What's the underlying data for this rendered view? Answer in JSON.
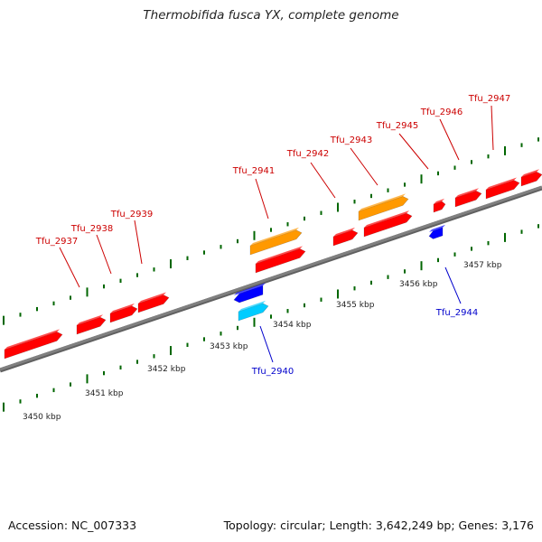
{
  "title": "Thermobifida fusca YX, complete genome",
  "footer": {
    "accession": "Accession: NC_007333",
    "stats": "Topology: circular; Length: 3,642,249 bp; Genes: 3,176"
  },
  "colors": {
    "backbone": "#808080",
    "forward_gene": "#ff0000",
    "reverse_gene": "#0000ff",
    "forward_feature": "#ff9900",
    "reverse_feature": "#00ccff",
    "forward_label": "#cc0000",
    "reverse_label": "#0000cc",
    "tick": "#006600"
  },
  "kbp_labels": [
    "3450 kbp",
    "3451 kbp",
    "3452 kbp",
    "3453 kbp",
    "3454 kbp",
    "3455 kbp",
    "3456 kbp",
    "3457 kbp"
  ],
  "genes": [
    {
      "name": "Tfu_2937",
      "strand": "forward"
    },
    {
      "name": "Tfu_2938",
      "strand": "forward"
    },
    {
      "name": "Tfu_2939",
      "strand": "forward"
    },
    {
      "name": "Tfu_2940",
      "strand": "reverse"
    },
    {
      "name": "Tfu_2941",
      "strand": "forward"
    },
    {
      "name": "Tfu_2942",
      "strand": "forward"
    },
    {
      "name": "Tfu_2943",
      "strand": "forward"
    },
    {
      "name": "Tfu_2944",
      "strand": "reverse"
    },
    {
      "name": "Tfu_2945",
      "strand": "forward"
    },
    {
      "name": "Tfu_2946",
      "strand": "forward"
    },
    {
      "name": "Tfu_2947",
      "strand": "forward"
    }
  ]
}
